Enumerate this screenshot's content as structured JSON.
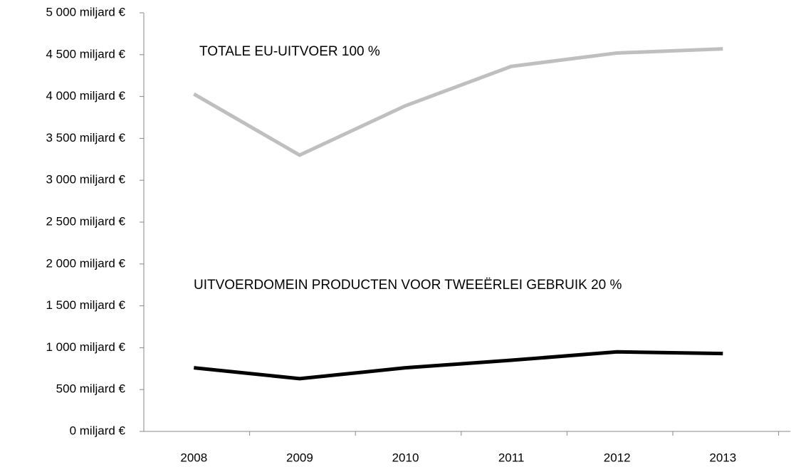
{
  "chart_data": {
    "type": "line",
    "categories": [
      "2008",
      "2009",
      "2010",
      "2011",
      "2012",
      "2013"
    ],
    "series": [
      {
        "name": "TOTALE EU-UITVOER 100 %",
        "color": "#bfbfbf",
        "values": [
          4030,
          3300,
          3890,
          4360,
          4520,
          4570
        ]
      },
      {
        "name": "UITVOERDOMEIN PRODUCTEN VOOR TWEEËRLEI GEBRUIK 20 %",
        "color": "#000000",
        "values": [
          760,
          630,
          760,
          850,
          950,
          930
        ]
      }
    ],
    "ylim": [
      0,
      5000
    ],
    "yticks": [
      {
        "value": 0,
        "label": "0 miljard €"
      },
      {
        "value": 500,
        "label": "500 miljard €"
      },
      {
        "value": 1000,
        "label": "1 000 miljard €"
      },
      {
        "value": 1500,
        "label": "1 500 miljard €"
      },
      {
        "value": 2000,
        "label": "2 000 miljard €"
      },
      {
        "value": 2500,
        "label": "2 500 miljard €"
      },
      {
        "value": 3000,
        "label": "3 000 miljard €"
      },
      {
        "value": 3500,
        "label": "3 500 miljard €"
      },
      {
        "value": 4000,
        "label": "4 000 miljard €"
      },
      {
        "value": 4500,
        "label": "4 500 miljard €"
      },
      {
        "value": 5000,
        "label": "5 000 miljard €"
      }
    ],
    "grid": false
  }
}
